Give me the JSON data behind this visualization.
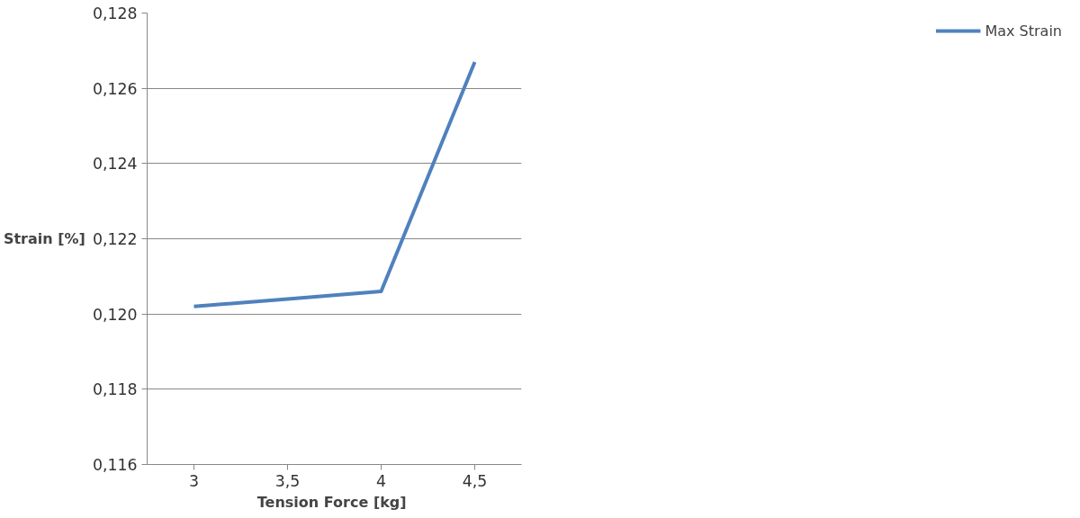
{
  "chart_data": {
    "type": "line",
    "xlabel": "Tension Force  [kg]",
    "ylabel": "Strain [%]",
    "categories": [
      "3",
      "3,5",
      "4",
      "4,5"
    ],
    "series": [
      {
        "name": "Max Strain",
        "color": "#4f81bd",
        "values": [
          0.1202,
          0.1204,
          0.1206,
          0.1267
        ]
      }
    ],
    "ylim": [
      0.116,
      0.128
    ],
    "yticks": [
      {
        "value": 0.116,
        "label": "0,116"
      },
      {
        "value": 0.118,
        "label": "0,118"
      },
      {
        "value": 0.12,
        "label": "0,120"
      },
      {
        "value": 0.122,
        "label": "0,122"
      },
      {
        "value": 0.124,
        "label": "0,124"
      },
      {
        "value": 0.126,
        "label": "0,126"
      },
      {
        "value": 0.128,
        "label": "0,128"
      }
    ],
    "grid": "y",
    "legend": "right",
    "marker": "none",
    "line_style": "solid"
  }
}
